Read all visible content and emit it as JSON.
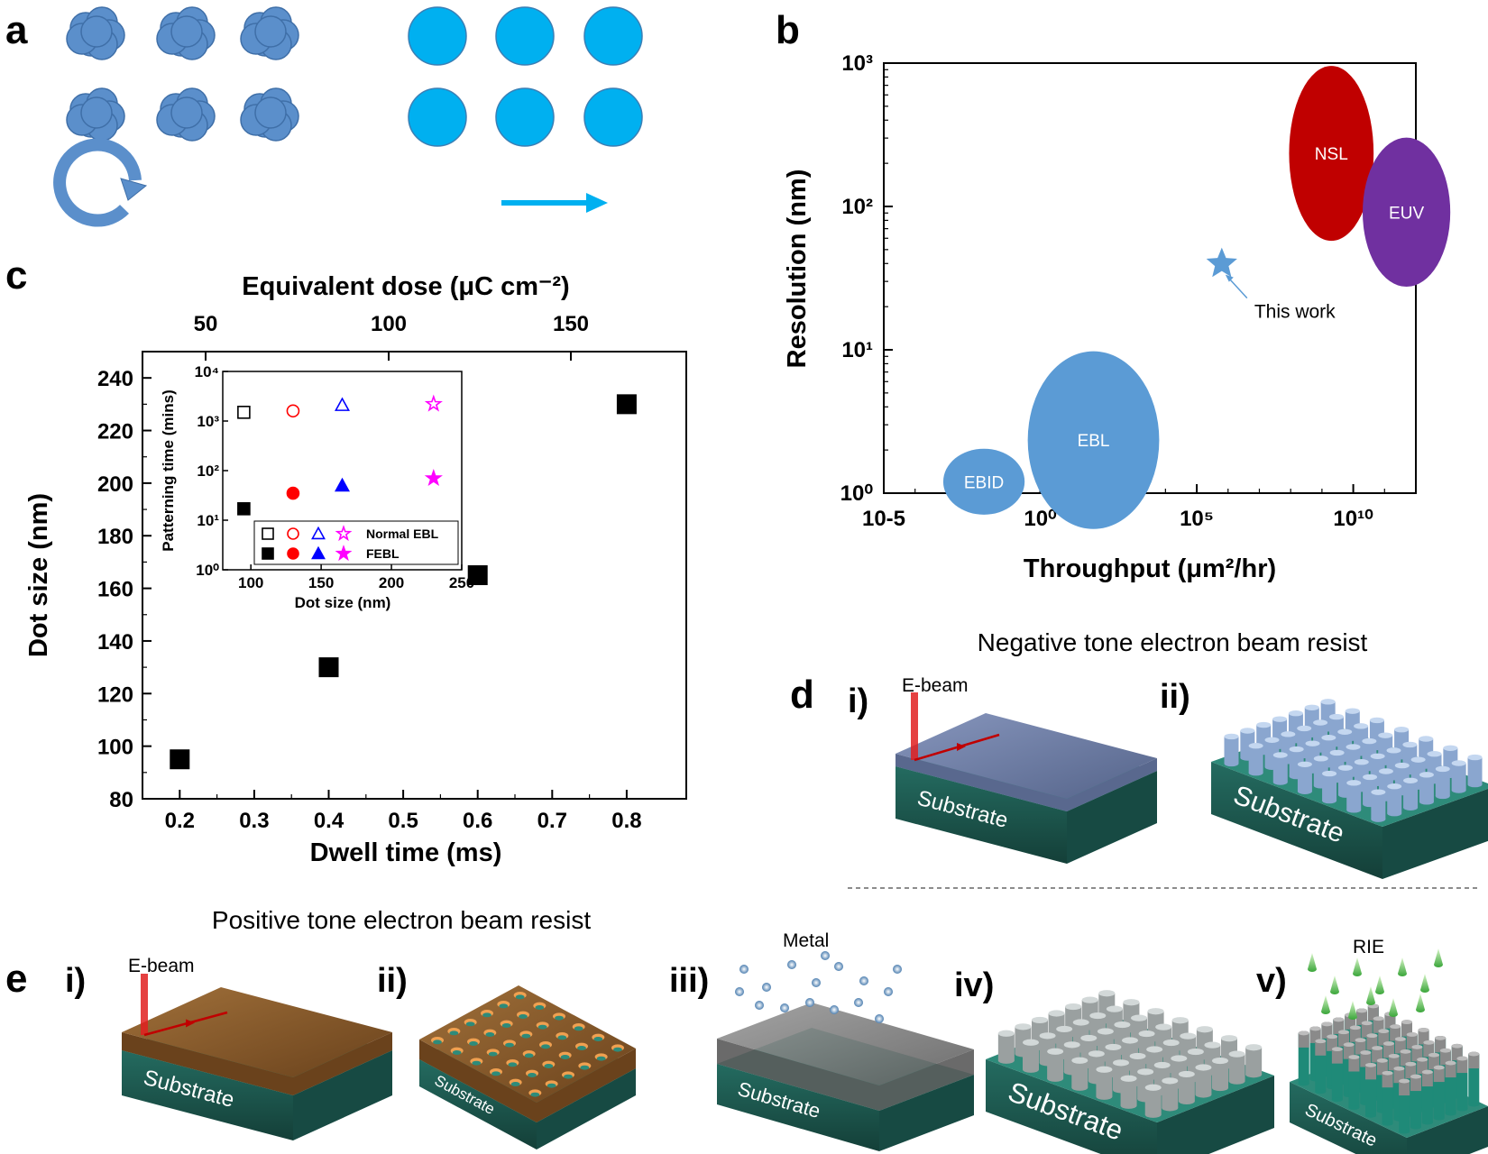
{
  "panel_labels": {
    "a": "a",
    "b": "b",
    "c": "c",
    "d": "d",
    "e": "e"
  },
  "chart_data": [
    {
      "panel": "b",
      "type": "scatter",
      "xlabel": "Throughput (μm²/hr)",
      "ylabel": "Resolution (nm)",
      "xscale": "log",
      "yscale": "log",
      "xlim_exp": [
        -5,
        12
      ],
      "ylim_exp": [
        0,
        3
      ],
      "x_ticks": [
        "10-5",
        "10⁰",
        "10⁵",
        "10¹⁰"
      ],
      "y_ticks": [
        "10⁰",
        "10¹",
        "10²",
        "10³"
      ],
      "regions": [
        {
          "name": "EBID",
          "log_x_center": -1.8,
          "log_y_center": 0.08,
          "log_x_halfwidth": 1.3,
          "log_y_halfwidth": 0.23,
          "color": "#5b9bd5"
        },
        {
          "name": "EBL",
          "log_x_center": 1.7,
          "log_y_center": 0.37,
          "log_x_halfwidth": 2.1,
          "log_y_halfwidth": 0.62,
          "color": "#5b9bd5"
        },
        {
          "name": "NSL",
          "log_x_center": 9.3,
          "log_y_center": 2.37,
          "log_x_halfwidth": 1.35,
          "log_y_halfwidth": 0.61,
          "color": "#c00000"
        },
        {
          "name": "EUV",
          "log_x_center": 11.7,
          "log_y_center": 1.96,
          "log_x_halfwidth": 1.4,
          "log_y_halfwidth": 0.52,
          "color": "#7030a0"
        }
      ],
      "points": [
        {
          "name": "This work",
          "log_x": 5.8,
          "log_y": 1.6,
          "marker": "star",
          "color": "#5b9bd5"
        }
      ]
    },
    {
      "panel": "c",
      "type": "scatter",
      "xlabel": "Dwell time (ms)",
      "ylabel": "Dot size (nm)",
      "top_xlabel": "Equivalent dose (μC cm⁻²)",
      "xlim": [
        0.15,
        0.88
      ],
      "ylim": [
        80,
        250
      ],
      "x_ticks": [
        "0.2",
        "0.3",
        "0.4",
        "0.5",
        "0.6",
        "0.7",
        "0.8"
      ],
      "y_ticks": [
        "80",
        "100",
        "120",
        "140",
        "160",
        "180",
        "200",
        "220",
        "240"
      ],
      "top_ticks": [
        "50",
        "100",
        "150"
      ],
      "x": [
        0.2,
        0.4,
        0.6,
        0.8
      ],
      "y": [
        95,
        130,
        165,
        230
      ],
      "marker": "filled-square",
      "inset": {
        "xlabel": "Dot size (nm)",
        "ylabel": "Patterning time (mins)",
        "xlim": [
          80,
          250
        ],
        "ylim_exp": [
          0,
          4
        ],
        "x_ticks": [
          "100",
          "150",
          "200",
          "250"
        ],
        "y_ticks": [
          "10⁰",
          "10¹",
          "10²",
          "10³",
          "10⁴"
        ],
        "legend": [
          "Normal EBL",
          "FEBL"
        ],
        "series": [
          {
            "name": "Normal EBL",
            "x": [
              95,
              130,
              165,
              230
            ],
            "y": [
              1500,
              1600,
              2100,
              2200
            ],
            "markers": [
              "square",
              "circle",
              "triangle",
              "star"
            ],
            "filled": false
          },
          {
            "name": "FEBL",
            "x": [
              95,
              130,
              165,
              230
            ],
            "y": [
              17,
              35,
              50,
              70
            ],
            "markers": [
              "square",
              "circle",
              "triangle",
              "star"
            ],
            "filled": true
          }
        ],
        "colors": [
          "#000000",
          "#ff0000",
          "#0000ff",
          "#ff00ff"
        ]
      }
    }
  ],
  "panel_d": {
    "title": "Negative tone electron beam resist",
    "steps": [
      "i)",
      "ii)"
    ],
    "beam_label": "E-beam",
    "substrate": "Substrate"
  },
  "panel_e": {
    "title": "Positive tone electron beam resist",
    "steps": [
      "i)",
      "ii)",
      "iii)",
      "iv)",
      "v)"
    ],
    "beam_label": "E-beam",
    "metal_label": "Metal",
    "rie_label": "RIE",
    "substrate": "Substrate"
  },
  "colors": {
    "substrate_side": "#1f5e55",
    "substrate_top": "#2e8b7a",
    "resist_neg": "#6e7fa8",
    "resist_pos": "#8b5a2b",
    "pillar": "#9db8dc",
    "metal": "#a8a8a8",
    "beam": "#e02020"
  }
}
